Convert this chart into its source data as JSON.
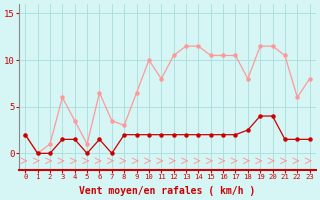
{
  "x": [
    0,
    1,
    2,
    3,
    4,
    5,
    6,
    7,
    8,
    9,
    10,
    11,
    12,
    13,
    14,
    15,
    16,
    17,
    18,
    19,
    20,
    21,
    22,
    23
  ],
  "wind_avg": [
    2,
    0,
    0,
    1.5,
    1.5,
    0,
    1.5,
    0,
    2,
    2,
    2,
    2,
    2,
    2,
    2,
    2,
    2,
    2,
    2.5,
    4,
    4,
    1.5,
    1.5,
    1.5
  ],
  "wind_gust": [
    2,
    0,
    1,
    6,
    3.5,
    1,
    6.5,
    3.5,
    3,
    6.5,
    10,
    8,
    10.5,
    11.5,
    11.5,
    10.5,
    10.5,
    10.5,
    8,
    11.5,
    11.5,
    10.5,
    6,
    8
  ],
  "wind_dir_y": -0.8,
  "color_avg": "#cc0000",
  "color_gust": "#ff9999",
  "bg_color": "#d6f5f5",
  "grid_color": "#aadddd",
  "xlabel": "Vent moyen/en rafales ( km/h )",
  "yticks": [
    0,
    5,
    10,
    15
  ],
  "ylim": [
    -1.8,
    16
  ],
  "xlim": [
    -0.5,
    23.5
  ],
  "title_color": "#cc0000",
  "tick_color": "#cc0000"
}
